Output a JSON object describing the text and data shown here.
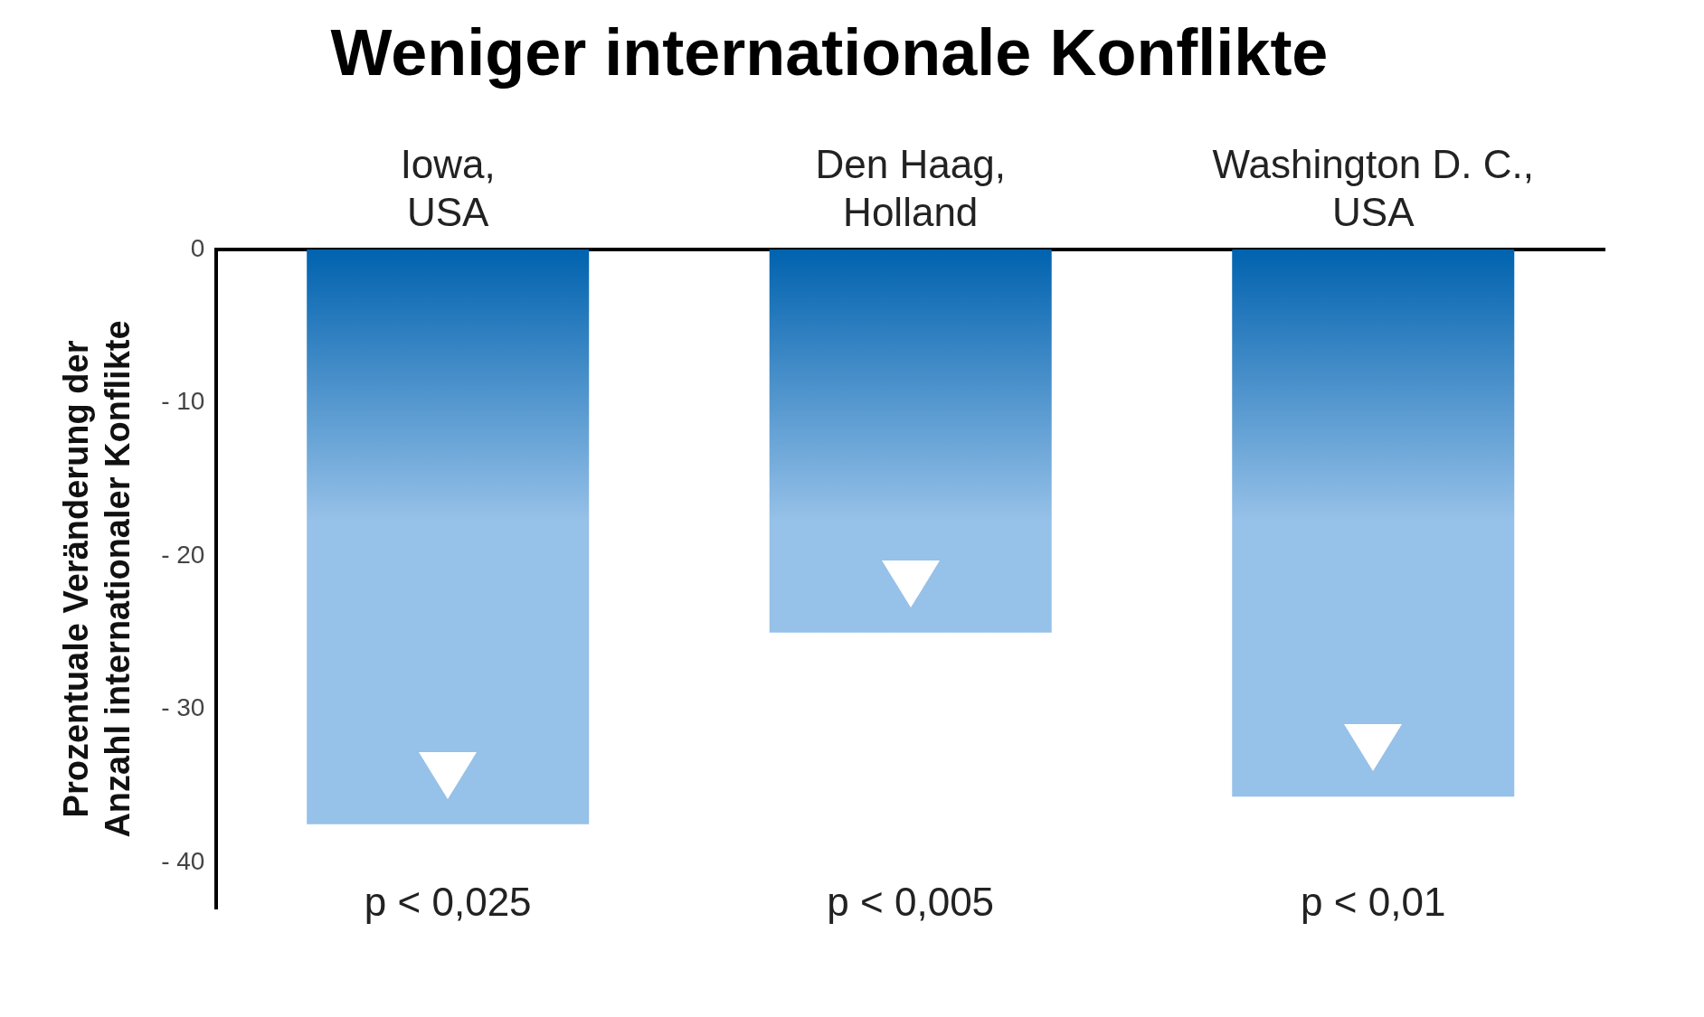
{
  "chart_data": {
    "type": "bar",
    "title": "Weniger internationale Konflikte",
    "ylabel": "Prozentuale Veränderung der Anzahl internationaler Konflikte",
    "categories": [
      "Iowa, USA",
      "Den Haag, Holland",
      "Washington D. C., USA"
    ],
    "series": [
      {
        "color": "#96c1e8",
        "values": [
          -37.5,
          -25,
          -35.7
        ]
      }
    ],
    "ylim": [
      -43,
      0
    ],
    "yticks": [
      0,
      {
        "value": -10,
        "label": "- 10"
      },
      {
        "value": -20,
        "label": "- 20"
      },
      {
        "value": -30,
        "label": "- 30"
      },
      {
        "value": -40,
        "label": "- 40"
      }
    ],
    "annotations": [
      "p < 0,025",
      "p < 0,005",
      "p < 0,01"
    ],
    "grid": false,
    "legend": false
  }
}
